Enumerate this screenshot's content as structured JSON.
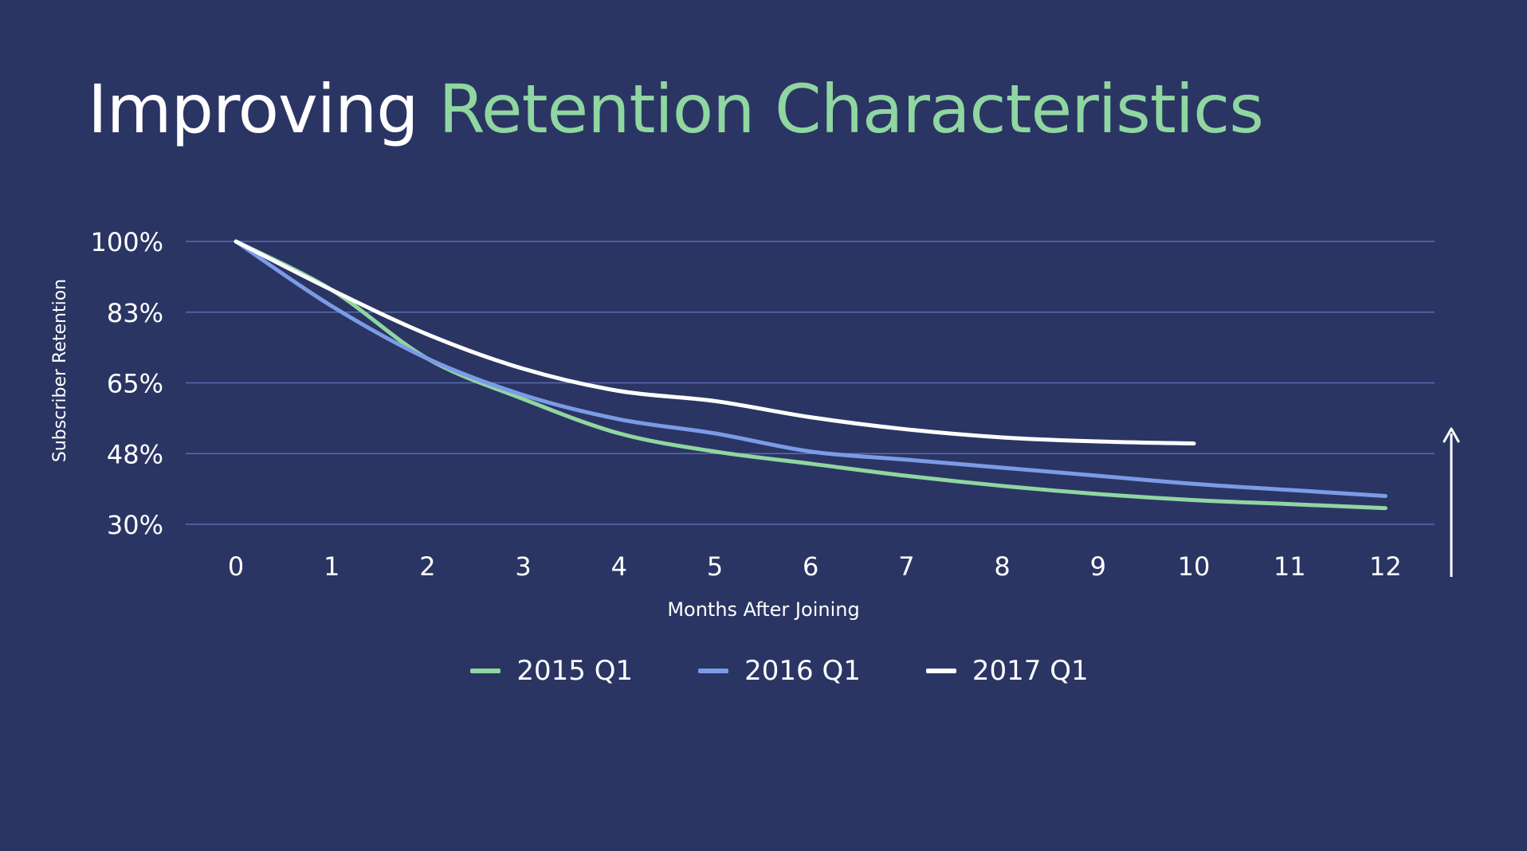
{
  "title": {
    "plain": "Improving",
    "accent": "Retention Characteristics"
  },
  "colors": {
    "background": "#2b3563",
    "accent": "#8fd6a0",
    "gridline": "#5a6bb0"
  },
  "chart_data": {
    "type": "line",
    "xlabel": "Months After Joining",
    "ylabel": "Subscriber Retention",
    "x_ticks": [
      "0",
      "1",
      "2",
      "3",
      "4",
      "5",
      "6",
      "7",
      "8",
      "9",
      "10",
      "11",
      "12"
    ],
    "y_ticks": [
      "100%",
      "83%",
      "65%",
      "48%",
      "30%"
    ],
    "y_tick_values": [
      100,
      82.5,
      65,
      47.5,
      30
    ],
    "ylim": [
      30,
      100
    ],
    "xlim": [
      0,
      12
    ],
    "grid": true,
    "legend_position": "bottom-center",
    "annotation": "upward-arrow",
    "series": [
      {
        "name": "2015 Q1",
        "color": "#8fd6a0",
        "x": [
          0,
          1,
          2,
          3,
          4,
          5,
          6,
          7,
          8,
          9,
          10,
          11,
          12
        ],
        "y": [
          100,
          88,
          71,
          61,
          52.5,
          48,
          45,
          42,
          39.5,
          37.5,
          36,
          35,
          34
        ]
      },
      {
        "name": "2016 Q1",
        "color": "#7b9be6",
        "x": [
          0,
          1,
          2,
          3,
          4,
          5,
          6,
          7,
          8,
          9,
          10,
          11,
          12
        ],
        "y": [
          100,
          84,
          71,
          62,
          56,
          52.5,
          48,
          46,
          44,
          42,
          40,
          38.5,
          37
        ]
      },
      {
        "name": "2017 Q1",
        "color": "#ffffff",
        "x": [
          0,
          1,
          2,
          3,
          4,
          5,
          6,
          7,
          8,
          9,
          10
        ],
        "y": [
          100,
          88,
          77,
          68.5,
          63,
          60.5,
          56.5,
          53.5,
          51.5,
          50.5,
          50
        ]
      }
    ]
  }
}
